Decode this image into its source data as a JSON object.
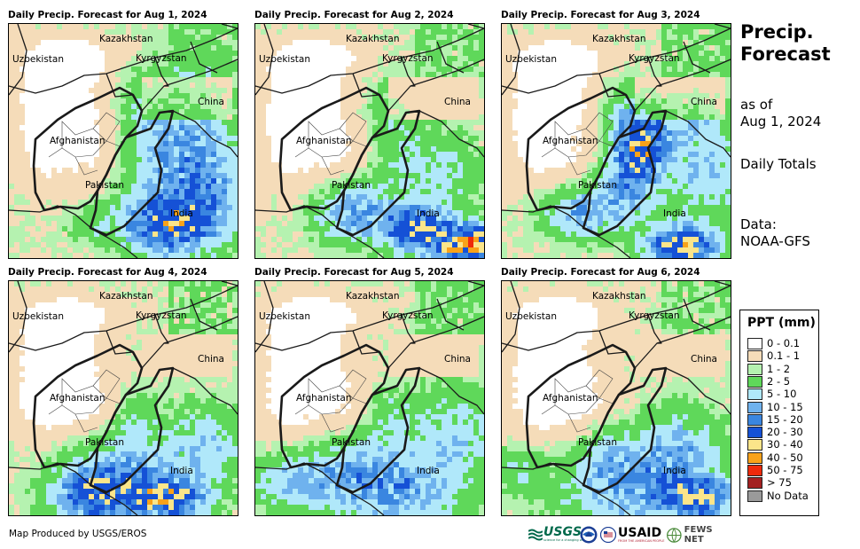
{
  "panels": [
    {
      "title": "Daily Precip. Forecast for Aug 1, 2024"
    },
    {
      "title": "Daily Precip. Forecast for Aug 2, 2024"
    },
    {
      "title": "Daily Precip. Forecast for Aug 3, 2024"
    },
    {
      "title": "Daily Precip. Forecast for Aug 4, 2024"
    },
    {
      "title": "Daily Precip. Forecast for Aug 5, 2024"
    },
    {
      "title": "Daily Precip. Forecast for Aug 6, 2024"
    }
  ],
  "map_labels": {
    "kazakhstan": "Kazakhstan",
    "uzbekistan": "Uzbekistan",
    "kyrgyzstan": "Kyrgyzstan",
    "china": "China",
    "afghanistan": "Afghanistan",
    "pakistan": "Pakistan",
    "india": "India"
  },
  "sidebar": {
    "title_line1": "Precip.",
    "title_line2": "Forecast",
    "asof_line1": "as of",
    "asof_line2": "Aug 1, 2024",
    "totals": "Daily Totals",
    "data_line1": "Data:",
    "data_line2": "NOAA-GFS"
  },
  "legend": {
    "title": "PPT (mm)",
    "items": [
      {
        "label": "0 - 0.1",
        "color": "#ffffff"
      },
      {
        "label": "0.1 - 1",
        "color": "#f5dcb9"
      },
      {
        "label": "1 - 2",
        "color": "#b5f2b0"
      },
      {
        "label": "2 - 5",
        "color": "#5fd85a"
      },
      {
        "label": "5 - 10",
        "color": "#b0e8fa"
      },
      {
        "label": "10 - 15",
        "color": "#6fb2ee"
      },
      {
        "label": "15 - 20",
        "color": "#3a86e0"
      },
      {
        "label": "20 - 30",
        "color": "#1551d6"
      },
      {
        "label": "30 - 40",
        "color": "#fbe58a"
      },
      {
        "label": "40 - 50",
        "color": "#f8a21a"
      },
      {
        "label": "50 - 75",
        "color": "#ee2a0c"
      },
      {
        "label": "> 75",
        "color": "#a32020"
      },
      {
        "label": "No Data",
        "color": "#9a9a9a"
      }
    ]
  },
  "footer": {
    "credit": "Map Produced by USGS/EROS"
  },
  "logos": {
    "usgs": "USGS",
    "usgs_tagline": "science for a changing world",
    "usaid": "USAID",
    "usaid_tagline": "FROM THE AMERICAN PEOPLE",
    "fewsnet": "FEWS NET"
  }
}
